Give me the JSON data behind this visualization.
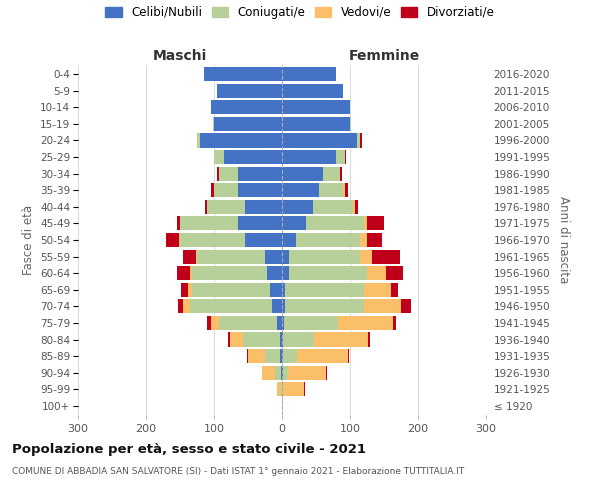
{
  "age_groups": [
    "100+",
    "95-99",
    "90-94",
    "85-89",
    "80-84",
    "75-79",
    "70-74",
    "65-69",
    "60-64",
    "55-59",
    "50-54",
    "45-49",
    "40-44",
    "35-39",
    "30-34",
    "25-29",
    "20-24",
    "15-19",
    "10-14",
    "5-9",
    "0-4"
  ],
  "birth_years": [
    "≤ 1920",
    "1921-1925",
    "1926-1930",
    "1931-1935",
    "1936-1940",
    "1941-1945",
    "1946-1950",
    "1951-1955",
    "1956-1960",
    "1961-1965",
    "1966-1970",
    "1971-1975",
    "1976-1980",
    "1981-1985",
    "1986-1990",
    "1991-1995",
    "1996-2000",
    "2001-2005",
    "2006-2010",
    "2011-2015",
    "2016-2020"
  ],
  "maschi": {
    "celibi": [
      0,
      0,
      1,
      3,
      3,
      8,
      15,
      18,
      22,
      25,
      55,
      65,
      55,
      65,
      65,
      85,
      120,
      100,
      105,
      95,
      115
    ],
    "coniugati": [
      0,
      2,
      10,
      22,
      55,
      85,
      120,
      115,
      110,
      100,
      95,
      85,
      55,
      35,
      28,
      15,
      5,
      2,
      0,
      0,
      0
    ],
    "vedovi": [
      0,
      5,
      18,
      25,
      18,
      12,
      10,
      5,
      3,
      2,
      1,
      0,
      0,
      0,
      0,
      0,
      0,
      0,
      0,
      0,
      0
    ],
    "divorziati": [
      0,
      0,
      0,
      1,
      3,
      5,
      8,
      10,
      20,
      18,
      20,
      5,
      3,
      5,
      2,
      0,
      0,
      0,
      0,
      0,
      0
    ]
  },
  "femmine": {
    "nubili": [
      0,
      0,
      1,
      2,
      2,
      3,
      5,
      5,
      10,
      10,
      20,
      35,
      45,
      55,
      60,
      80,
      110,
      100,
      100,
      90,
      80
    ],
    "coniugate": [
      0,
      2,
      8,
      20,
      45,
      80,
      115,
      115,
      115,
      105,
      95,
      85,
      60,
      35,
      25,
      12,
      5,
      2,
      0,
      0,
      0
    ],
    "vedove": [
      2,
      30,
      55,
      75,
      80,
      80,
      55,
      40,
      28,
      18,
      10,
      5,
      2,
      2,
      1,
      0,
      0,
      0,
      0,
      0,
      0
    ],
    "divorziate": [
      0,
      2,
      2,
      2,
      2,
      5,
      15,
      10,
      25,
      40,
      22,
      25,
      5,
      5,
      2,
      2,
      2,
      0,
      0,
      0,
      0
    ]
  },
  "colors": {
    "celibi_nubili": "#4472C4",
    "coniugati": "#B7D09A",
    "vedovi": "#FBBF6A",
    "divorziati": "#C0001A"
  },
  "title": "Popolazione per età, sesso e stato civile - 2021",
  "subtitle": "COMUNE DI ABBADIA SAN SALVATORE (SI) - Dati ISTAT 1° gennaio 2021 - Elaborazione TUTTITALIA.IT",
  "xlabel_left": "Maschi",
  "xlabel_right": "Femmine",
  "ylabel_left": "Fasce di età",
  "ylabel_right": "Anni di nascita",
  "xlim": 300,
  "legend_labels": [
    "Celibi/Nubili",
    "Coniugati/e",
    "Vedovi/e",
    "Divorziati/e"
  ],
  "xticks": [
    -300,
    -200,
    -100,
    0,
    100,
    200,
    300
  ]
}
